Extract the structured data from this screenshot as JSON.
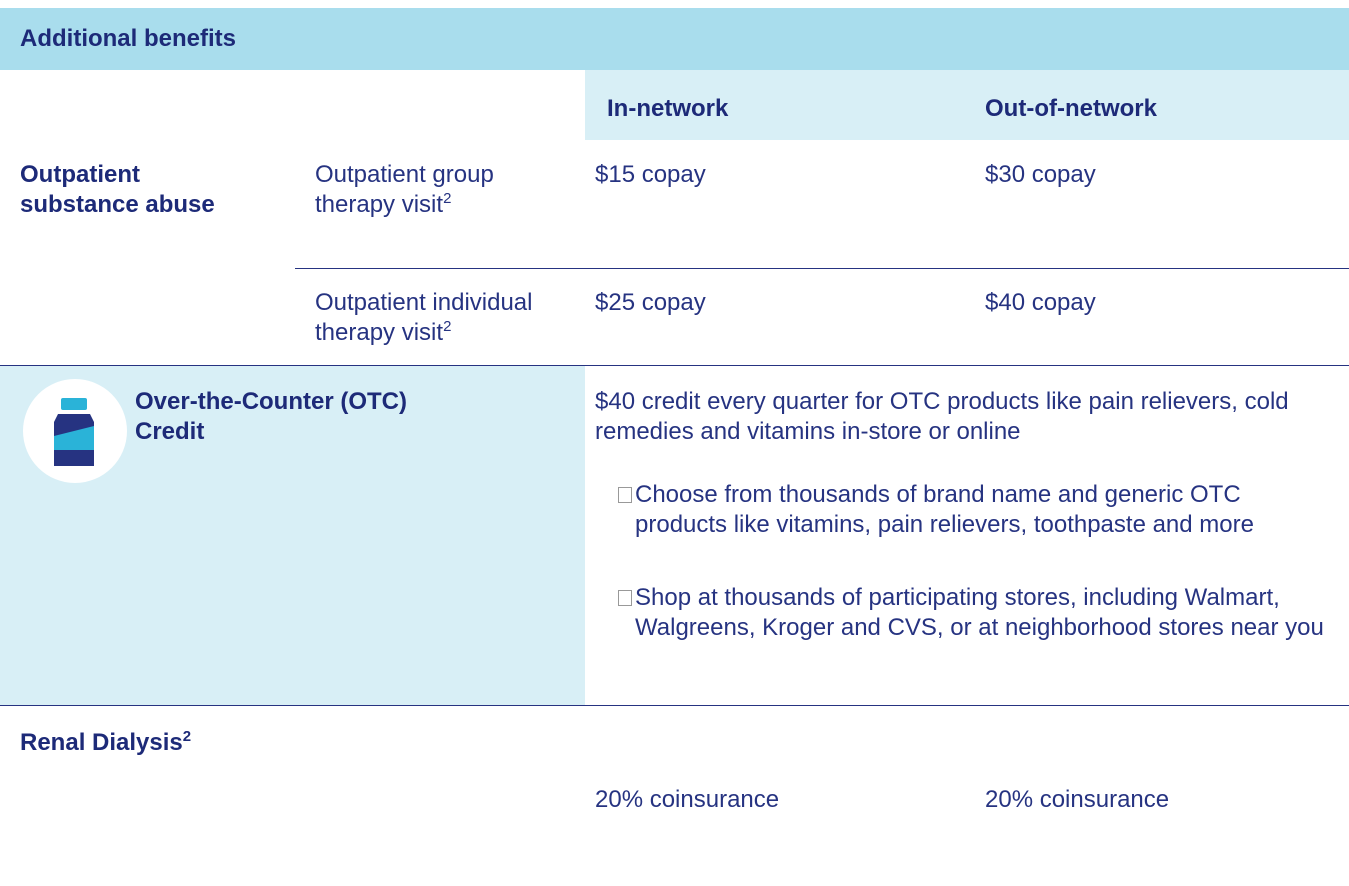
{
  "header": {
    "title": "Additional benefits"
  },
  "table": {
    "columns": [
      "In-network",
      "Out-of-network"
    ],
    "rows": [
      {
        "category": "Outpatient substance abuse",
        "service": "Outpatient group therapy visit",
        "note": "2",
        "in_network": "$15 copay",
        "out_of_network": "$30 copay"
      },
      {
        "service": "Outpatient individual therapy visit",
        "note": "2",
        "in_network": "$25 copay",
        "out_of_network": "$40 copay"
      },
      {
        "category": "Over-the-Counter (OTC) Credit",
        "description": "$40 credit every quarter for OTC products like pain relievers, cold remedies and vitamins in-store or online",
        "bullets": [
          "Choose from thousands of brand name and generic OTC products like vitamins, pain relievers, toothpaste and more",
          "Shop at thousands of participating stores, including Walmart, Walgreens, Kroger and CVS, or at neighborhood stores near you"
        ]
      },
      {
        "category": "Renal Dialysis",
        "note": "2",
        "in_network": "20% coinsurance",
        "out_of_network": "20% coinsurance"
      }
    ]
  }
}
